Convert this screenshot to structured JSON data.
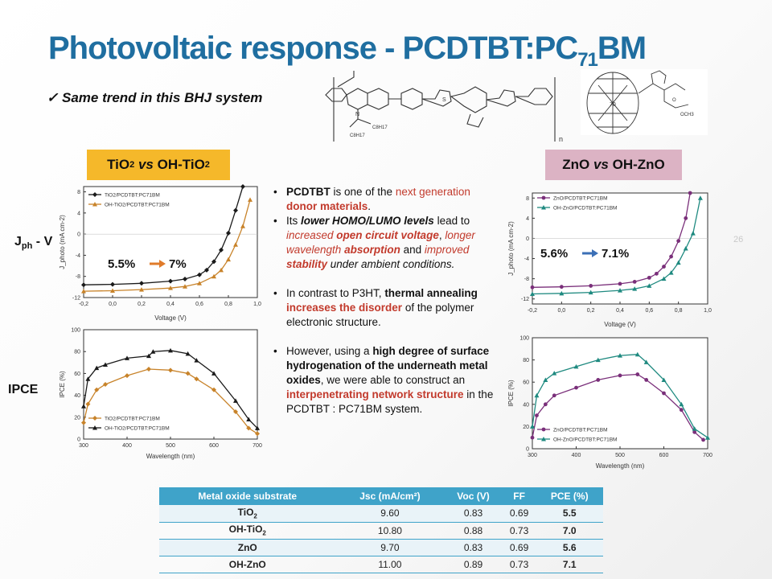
{
  "slide": {
    "title_main": "Photovoltaic response - PCDTBT:PC",
    "title_sub": "71",
    "title_end": "BM",
    "subtitle": "Same trend in this BHJ system",
    "check_mark": "✓",
    "page_number": "26"
  },
  "tags": {
    "left": {
      "a": "TiO",
      "a_sub": "2",
      "vs": "vs",
      "b": "OH-TiO",
      "b_sub": "2"
    },
    "right": {
      "a": "ZnO",
      "vs": "vs",
      "b": "OH-ZnO"
    }
  },
  "row_labels": {
    "jv_main": "J",
    "jv_sub": "ph",
    "jv_end": " - V",
    "ipce": "IPCE"
  },
  "molecule": {
    "c8_a": "C8H17",
    "c8_b": "C8H17",
    "n_left": "N",
    "s": "S",
    "n_sub": "n",
    "fullerene_label": "70",
    "ester": "OCH3",
    "o": "O"
  },
  "bullets": {
    "b1": {
      "t1": "PCDTBT",
      "t2": " is one of the ",
      "t3": "next generation ",
      "t4": "donor materials",
      "t5": "."
    },
    "b2": {
      "t1": "Its ",
      "t2": "lower HOMO/LUMO levels",
      "t3": " lead to ",
      "t4": "increased ",
      "t5": "open circuit voltage",
      "t6": ", ",
      "t7": "longer wavelength ",
      "t8": "absorption",
      "t9": " and ",
      "t10": "improved ",
      "t11": "stability",
      "t12": " under ambient conditions."
    },
    "b3": {
      "t1": "In contrast to P3HT, ",
      "t2": "thermal annealing",
      "t3": " ",
      "t4": "increases the disorder",
      "t5": " of the polymer electronic structure."
    },
    "b4": {
      "t1": "However, using a ",
      "t2": "high degree of surface hydrogenation of the underneath metal oxides",
      "t3": ", we were able to construct an ",
      "t4": "interpenetrating network structure",
      "t5": " in the PCDTBT : PC71BM system."
    }
  },
  "colors": {
    "title_blue": "#1f6ea0",
    "tio2_tag": "#f5b82a",
    "zno_tag": "#dcb3c4",
    "red_text": "#c23a2c",
    "table_header": "#3fa3c9",
    "arrow_orange": "#e07b2a",
    "arrow_blue": "#3b6fb6",
    "series_black": "#1a1a1a",
    "series_orange": "#c8832a",
    "series_purple": "#7a2f7a",
    "series_teal": "#1f8a80"
  },
  "table": {
    "headers": [
      "Metal oxide substrate",
      "Jsc (mA/cm²)",
      "Voc (V)",
      "FF",
      "PCE (%)"
    ],
    "rows": [
      {
        "substrate": "TiO2",
        "sub_main": "TiO",
        "sub_sub": "2",
        "jsc": "9.60",
        "voc": "0.83",
        "ff": "0.69",
        "pce": "5.5"
      },
      {
        "substrate": "OH-TiO2",
        "sub_main": "OH-TiO",
        "sub_sub": "2",
        "jsc": "10.80",
        "voc": "0.88",
        "ff": "0.73",
        "pce": "7.0"
      },
      {
        "substrate": "ZnO",
        "sub_main": "ZnO",
        "sub_sub": "",
        "jsc": "9.70",
        "voc": "0.83",
        "ff": "0.69",
        "pce": "5.6"
      },
      {
        "substrate": "OH-ZnO",
        "sub_main": "OH-ZnO",
        "sub_sub": "",
        "jsc": "11.00",
        "voc": "0.89",
        "ff": "0.73",
        "pce": "7.1"
      }
    ]
  },
  "chart_data": [
    {
      "type": "line",
      "id": "jv_tio2",
      "xlabel": "Voltage (V)",
      "ylabel": "J_photo (mA cm-2)",
      "xlim": [
        -0.2,
        1.0
      ],
      "ylim": [
        -12,
        9
      ],
      "xticks": [
        "-0,2",
        "0,0",
        "0,2",
        "0,4",
        "0,6",
        "0,8",
        "1,0"
      ],
      "yticks": [
        "8",
        "4",
        "0",
        "-4",
        "-8",
        "-12"
      ],
      "legend": "top-left",
      "annotation_a": "5.5%",
      "annotation_b": "7%",
      "series": [
        {
          "name": "TiO2/PCDTBT:PC71BM",
          "color": "#1a1a1a",
          "marker": "diamond",
          "x": [
            -0.2,
            0.0,
            0.2,
            0.4,
            0.5,
            0.6,
            0.65,
            0.7,
            0.75,
            0.8,
            0.85,
            0.9
          ],
          "y": [
            -9.6,
            -9.5,
            -9.3,
            -8.9,
            -8.5,
            -7.7,
            -6.8,
            -5.2,
            -3.0,
            0.2,
            4.5,
            9.0
          ]
        },
        {
          "name": "OH-TiO2/PCDTBT:PC71BM",
          "color": "#c8832a",
          "marker": "triangle",
          "x": [
            -0.2,
            0.0,
            0.2,
            0.4,
            0.5,
            0.6,
            0.7,
            0.75,
            0.8,
            0.85,
            0.9,
            0.95
          ],
          "y": [
            -10.8,
            -10.7,
            -10.5,
            -10.2,
            -9.9,
            -9.3,
            -8.0,
            -6.8,
            -4.8,
            -2.0,
            1.5,
            6.5
          ]
        }
      ]
    },
    {
      "type": "line",
      "id": "ipce_tio2",
      "xlabel": "Wavelength (nm)",
      "ylabel": "IPCE (%)",
      "xlim": [
        300,
        700
      ],
      "ylim": [
        0,
        100
      ],
      "xticks": [
        "300",
        "400",
        "500",
        "600",
        "700"
      ],
      "yticks": [
        "0",
        "20",
        "40",
        "60",
        "80",
        "100"
      ],
      "legend": "bottom-left",
      "series": [
        {
          "name": "TiO2/PCDTBT:PC71BM",
          "color": "#c8832a",
          "marker": "diamond",
          "x": [
            300,
            310,
            330,
            350,
            400,
            450,
            500,
            540,
            560,
            600,
            650,
            680,
            700
          ],
          "y": [
            15,
            32,
            45,
            50,
            58,
            64,
            63,
            60,
            55,
            45,
            25,
            10,
            5
          ]
        },
        {
          "name": "OH-TiO2/PCDTBT:PC71BM",
          "color": "#1a1a1a",
          "marker": "triangle",
          "x": [
            300,
            310,
            330,
            350,
            400,
            450,
            460,
            500,
            540,
            560,
            600,
            650,
            680,
            700
          ],
          "y": [
            30,
            55,
            65,
            68,
            74,
            76,
            80,
            81,
            78,
            72,
            60,
            35,
            18,
            10
          ]
        }
      ]
    },
    {
      "type": "line",
      "id": "jv_zno",
      "xlabel": "Voltage (V)",
      "ylabel": "J_photo (mA cm-2)",
      "xlim": [
        -0.2,
        1.0
      ],
      "ylim": [
        -13,
        9
      ],
      "xticks": [
        "-0,2",
        "0,0",
        "0,2",
        "0,4",
        "0,6",
        "0,8",
        "1,0"
      ],
      "yticks": [
        "8",
        "4",
        "0",
        "-4",
        "-8",
        "-12"
      ],
      "legend": "top-left",
      "annotation_a": "5.6%",
      "annotation_b": "7.1%",
      "series": [
        {
          "name": "ZnO/PCDTBT:PC71BM",
          "color": "#7a2f7a",
          "marker": "circle",
          "x": [
            -0.2,
            0.0,
            0.2,
            0.4,
            0.5,
            0.6,
            0.65,
            0.7,
            0.75,
            0.8,
            0.85,
            0.88
          ],
          "y": [
            -9.7,
            -9.6,
            -9.4,
            -9.0,
            -8.6,
            -7.8,
            -7.0,
            -5.6,
            -3.6,
            -0.5,
            4.0,
            9.0
          ]
        },
        {
          "name": "OH-ZnO/PCDTBT:PC71BM",
          "color": "#1f8a80",
          "marker": "triangle",
          "x": [
            -0.2,
            0.0,
            0.2,
            0.4,
            0.5,
            0.6,
            0.7,
            0.75,
            0.8,
            0.85,
            0.9,
            0.95
          ],
          "y": [
            -11.0,
            -10.9,
            -10.7,
            -10.3,
            -10.0,
            -9.4,
            -8.0,
            -6.8,
            -4.8,
            -2.0,
            1.0,
            8.0
          ]
        }
      ]
    },
    {
      "type": "line",
      "id": "ipce_zno",
      "xlabel": "Wavelength (nm)",
      "ylabel": "IPCE (%)",
      "xlim": [
        300,
        700
      ],
      "ylim": [
        0,
        100
      ],
      "xticks": [
        "300",
        "400",
        "500",
        "600",
        "700"
      ],
      "yticks": [
        "0",
        "20",
        "40",
        "60",
        "80",
        "100"
      ],
      "legend": "bottom-left",
      "series": [
        {
          "name": "ZnO/PCDTBT:PC71BM",
          "color": "#7a2f7a",
          "marker": "circle",
          "x": [
            300,
            310,
            330,
            350,
            400,
            450,
            500,
            540,
            560,
            600,
            640,
            670,
            690
          ],
          "y": [
            10,
            30,
            40,
            48,
            55,
            62,
            66,
            67,
            62,
            50,
            35,
            15,
            8
          ]
        },
        {
          "name": "OH-ZnO/PCDTBT:PC71BM",
          "color": "#1f8a80",
          "marker": "triangle",
          "x": [
            300,
            310,
            330,
            350,
            400,
            450,
            500,
            540,
            560,
            600,
            640,
            670,
            700
          ],
          "y": [
            20,
            48,
            62,
            68,
            74,
            80,
            84,
            85,
            78,
            62,
            40,
            18,
            10
          ]
        }
      ]
    }
  ]
}
